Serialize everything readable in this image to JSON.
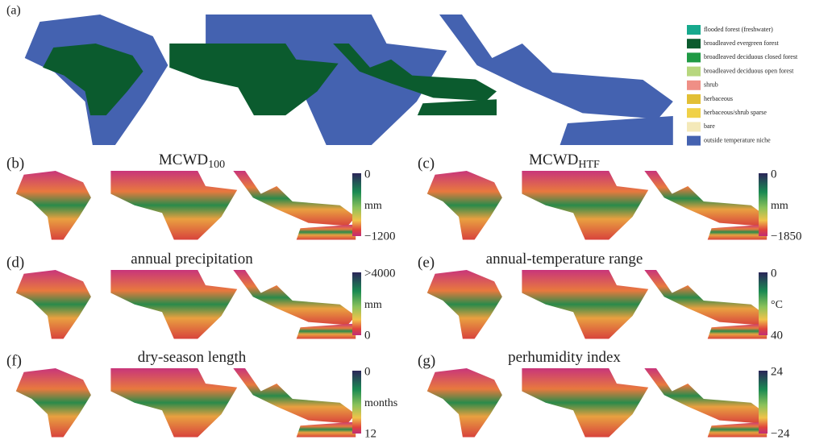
{
  "panel_a": {
    "label": "(a)",
    "legend": [
      {
        "label": "flooded forest (freshwater)",
        "color": "#17a98d"
      },
      {
        "label": "broadleaved evergreen forest",
        "color": "#0b5b2e"
      },
      {
        "label": "broadleaved deciduous closed forest",
        "color": "#1f9a45"
      },
      {
        "label": "broadleaved deciduous open forest",
        "color": "#b7d77e"
      },
      {
        "label": "shrub",
        "color": "#ef8f86"
      },
      {
        "label": "herbaceous",
        "color": "#e2bf35"
      },
      {
        "label": "herbaceous/shrub sparse",
        "color": "#f0d148"
      },
      {
        "label": "bare",
        "color": "#f4e9b9"
      },
      {
        "label": "outside temperature niche",
        "color": "#4462b0"
      }
    ]
  },
  "panels": [
    {
      "label": "(b)",
      "title": "MCWD",
      "title_sub": "100",
      "colorbar": {
        "top": "0",
        "middle": "mm",
        "bottom": "−1200"
      }
    },
    {
      "label": "(c)",
      "title": "MCWD",
      "title_sub": "HTF",
      "colorbar": {
        "top": "0",
        "middle": "mm",
        "bottom": "−1850"
      }
    },
    {
      "label": "(d)",
      "title": "annual precipitation",
      "colorbar": {
        "top": ">4000",
        "middle": "mm",
        "bottom": "0"
      }
    },
    {
      "label": "(e)",
      "title": "annual-temperature range",
      "colorbar": {
        "top": "0",
        "middle": "°C",
        "bottom": "40"
      }
    },
    {
      "label": "(f)",
      "title": "dry-season length",
      "colorbar": {
        "top": "0",
        "middle": "months",
        "bottom": "12"
      }
    },
    {
      "label": "(g)",
      "title": "perhumidity index",
      "colorbar": {
        "top": "24",
        "middle": "",
        "bottom": "−24"
      }
    }
  ]
}
